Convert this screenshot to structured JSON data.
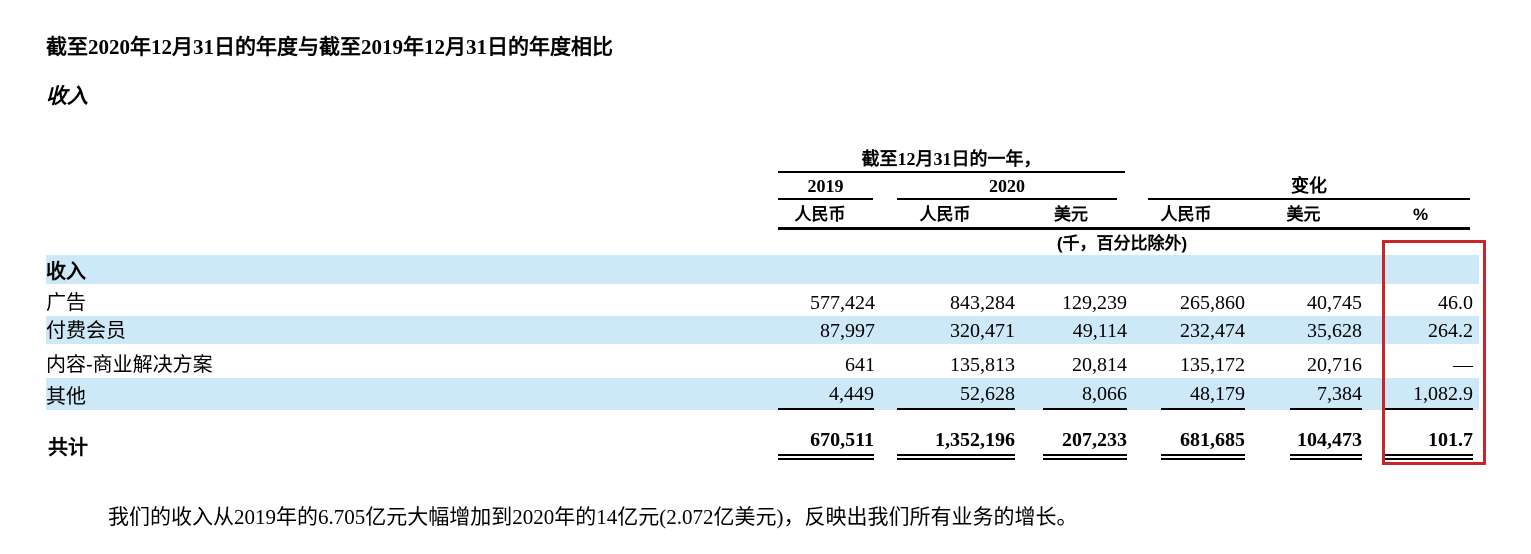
{
  "page": {
    "title": "截至2020年12月31日的年度与截至2019年12月31日的年度相比",
    "subtitle": "收入",
    "footnote": "我们的收入从2019年的6.705亿元大幅增加到2020年的14亿元(2.072亿美元)，反映出我们所有业务的增长。"
  },
  "table": {
    "group_period": "截至12月31日的一年，",
    "group_2019": "2019",
    "group_2020": "2020",
    "group_change": "变化",
    "col_headers": [
      "人民币",
      "人民币",
      "美元",
      "人民币",
      "美元",
      "%"
    ],
    "unit_note": "(千，百分比除外)",
    "section_label": "收入",
    "rows": [
      {
        "label": "广告",
        "values": [
          "577,424",
          "843,284",
          "129,239",
          "265,860",
          "40,745",
          "46.0"
        ]
      },
      {
        "label": "付费会员",
        "values": [
          "87,997",
          "320,471",
          "49,114",
          "232,474",
          "35,628",
          "264.2"
        ]
      },
      {
        "label": "内容-商业解决方案",
        "values": [
          "641",
          "135,813",
          "20,814",
          "135,172",
          "20,716",
          "—"
        ]
      },
      {
        "label": "其他",
        "values": [
          "4,449",
          "52,628",
          "8,066",
          "48,179",
          "7,384",
          "1,082.9"
        ]
      }
    ],
    "total": {
      "label": "共计",
      "values": [
        "670,511",
        "1,352,196",
        "207,233",
        "681,685",
        "104,473",
        "101.7"
      ]
    }
  },
  "colors": {
    "row_highlight": "#cde9f8",
    "highlight_box": "#c9252b"
  }
}
